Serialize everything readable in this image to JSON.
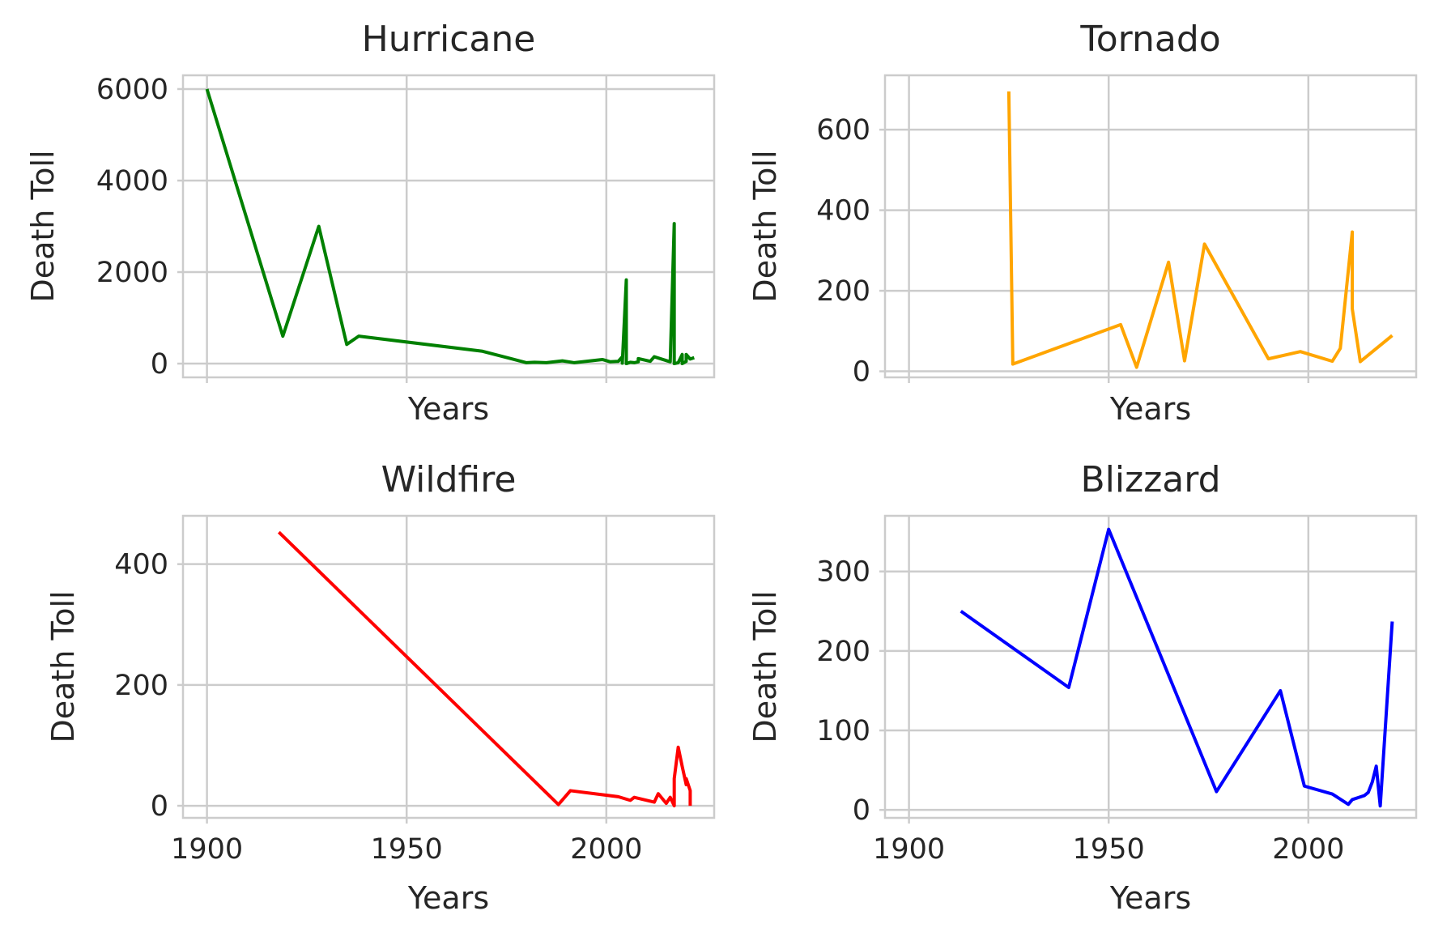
{
  "chart_data": [
    {
      "type": "line",
      "title": "Hurricane",
      "xlabel": "Years",
      "ylabel": "Death Toll",
      "color": "#008000",
      "xlim": [
        1894,
        2027
      ],
      "ylim": [
        -300,
        6300
      ],
      "xticks": [
        1900,
        1950,
        2000
      ],
      "yticks": [
        0,
        2000,
        4000,
        6000
      ],
      "show_xtick_labels": false,
      "grid": true,
      "x": [
        1900,
        1919,
        1928,
        1935,
        1938,
        1969,
        1980,
        1982,
        1985,
        1989,
        1992,
        1999,
        2001,
        2003,
        2004,
        2004,
        2005,
        2005,
        2005,
        2006,
        2007,
        2008,
        2008,
        2011,
        2012,
        2016,
        2017,
        2017,
        2018,
        2019,
        2019,
        2020,
        2020,
        2021,
        2022
      ],
      "y": [
        6000,
        600,
        3000,
        420,
        600,
        270,
        20,
        30,
        20,
        60,
        20,
        90,
        40,
        50,
        150,
        10,
        1830,
        20,
        0,
        30,
        20,
        40,
        110,
        50,
        150,
        40,
        3060,
        0,
        20,
        200,
        0,
        50,
        200,
        100,
        130
      ]
    },
    {
      "type": "line",
      "title": "Tornado",
      "xlabel": "Years",
      "ylabel": "Death Toll",
      "color": "#ffa500",
      "xlim": [
        1894,
        2027
      ],
      "ylim": [
        -15,
        735
      ],
      "xticks": [
        1900,
        1950,
        2000
      ],
      "yticks": [
        0,
        200,
        400,
        600
      ],
      "show_xtick_labels": false,
      "grid": true,
      "x": [
        1925,
        1926,
        1953,
        1957,
        1965,
        1969,
        1974,
        1990,
        1998,
        2006,
        2008,
        2011,
        2011,
        2013,
        2021
      ],
      "y": [
        695,
        18,
        116,
        10,
        271,
        26,
        316,
        31,
        49,
        25,
        57,
        346,
        155,
        24,
        89
      ]
    },
    {
      "type": "line",
      "title": "Wildfire",
      "xlabel": "Years",
      "ylabel": "Death Toll",
      "color": "#ff0000",
      "xlim": [
        1894,
        2027
      ],
      "ylim": [
        -20,
        480
      ],
      "xticks": [
        1900,
        1950,
        2000
      ],
      "yticks": [
        0,
        200,
        400
      ],
      "show_xtick_labels": true,
      "grid": true,
      "x": [
        1918,
        1988,
        1991,
        2003,
        2006,
        2007,
        2012,
        2013,
        2015,
        2016,
        2017,
        2017,
        2018,
        2019,
        2020,
        2020,
        2021,
        2021
      ],
      "y": [
        453,
        2,
        25,
        15,
        9,
        14,
        6,
        20,
        4,
        14,
        0,
        45,
        97,
        65,
        35,
        45,
        25,
        0
      ]
    },
    {
      "type": "line",
      "title": "Blizzard",
      "xlabel": "Years",
      "ylabel": "Death Toll",
      "color": "#0000ff",
      "xlim": [
        1894,
        2027
      ],
      "ylim": [
        -10,
        370
      ],
      "xticks": [
        1900,
        1950,
        2000
      ],
      "yticks": [
        0,
        100,
        200,
        300
      ],
      "show_xtick_labels": true,
      "grid": true,
      "x": [
        1913,
        1940,
        1950,
        1977,
        1993,
        1999,
        2006,
        2010,
        2011,
        2014,
        2015,
        2016,
        2017,
        2018,
        2021
      ],
      "y": [
        250,
        154,
        353,
        23,
        150,
        30,
        20,
        7,
        13,
        18,
        22,
        35,
        55,
        5,
        237
      ]
    }
  ]
}
